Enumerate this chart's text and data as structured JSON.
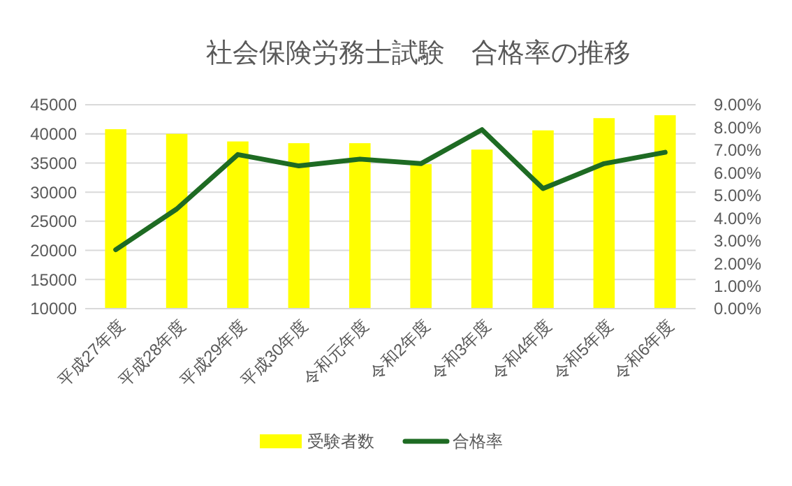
{
  "chart_data": {
    "type": "bar",
    "title": "社会保険労務士試験　合格率の推移",
    "categories": [
      "平成27年度",
      "平成28年度",
      "平成29年度",
      "平成30年度",
      "令和元年度",
      "令和2年度",
      "令和3年度",
      "令和4年度",
      "令和5年度",
      "令和6年度"
    ],
    "series": [
      {
        "name": "受験者数",
        "color": "#ffff00",
        "values": [
          40800,
          40000,
          38700,
          38400,
          38400,
          34800,
          37300,
          40600,
          42700,
          43200
        ]
      },
      {
        "name": "合格率",
        "type": "line",
        "axis": "y2",
        "color": "#1e6b23",
        "values": [
          2.6,
          4.4,
          6.8,
          6.3,
          6.6,
          6.4,
          7.9,
          5.3,
          6.4,
          6.9
        ]
      }
    ],
    "ylim": [
      10000,
      45000
    ],
    "yticks": [
      10000,
      15000,
      20000,
      25000,
      30000,
      35000,
      40000,
      45000
    ],
    "y2lim": [
      0,
      9
    ],
    "y2ticks": [
      {
        "value": 0,
        "label": "0.00%"
      },
      {
        "value": 1,
        "label": "1.00%"
      },
      {
        "value": 2,
        "label": "2.00%"
      },
      {
        "value": 3,
        "label": "3.00%"
      },
      {
        "value": 4,
        "label": "4.00%"
      },
      {
        "value": 5,
        "label": "5.00%"
      },
      {
        "value": 6,
        "label": "6.00%"
      },
      {
        "value": 7,
        "label": "7.00%"
      },
      {
        "value": 8,
        "label": "8.00%"
      },
      {
        "value": 9,
        "label": "9.00%"
      }
    ],
    "grid": "y",
    "legend": "bottom",
    "marker": "none",
    "line_style": "solid"
  }
}
